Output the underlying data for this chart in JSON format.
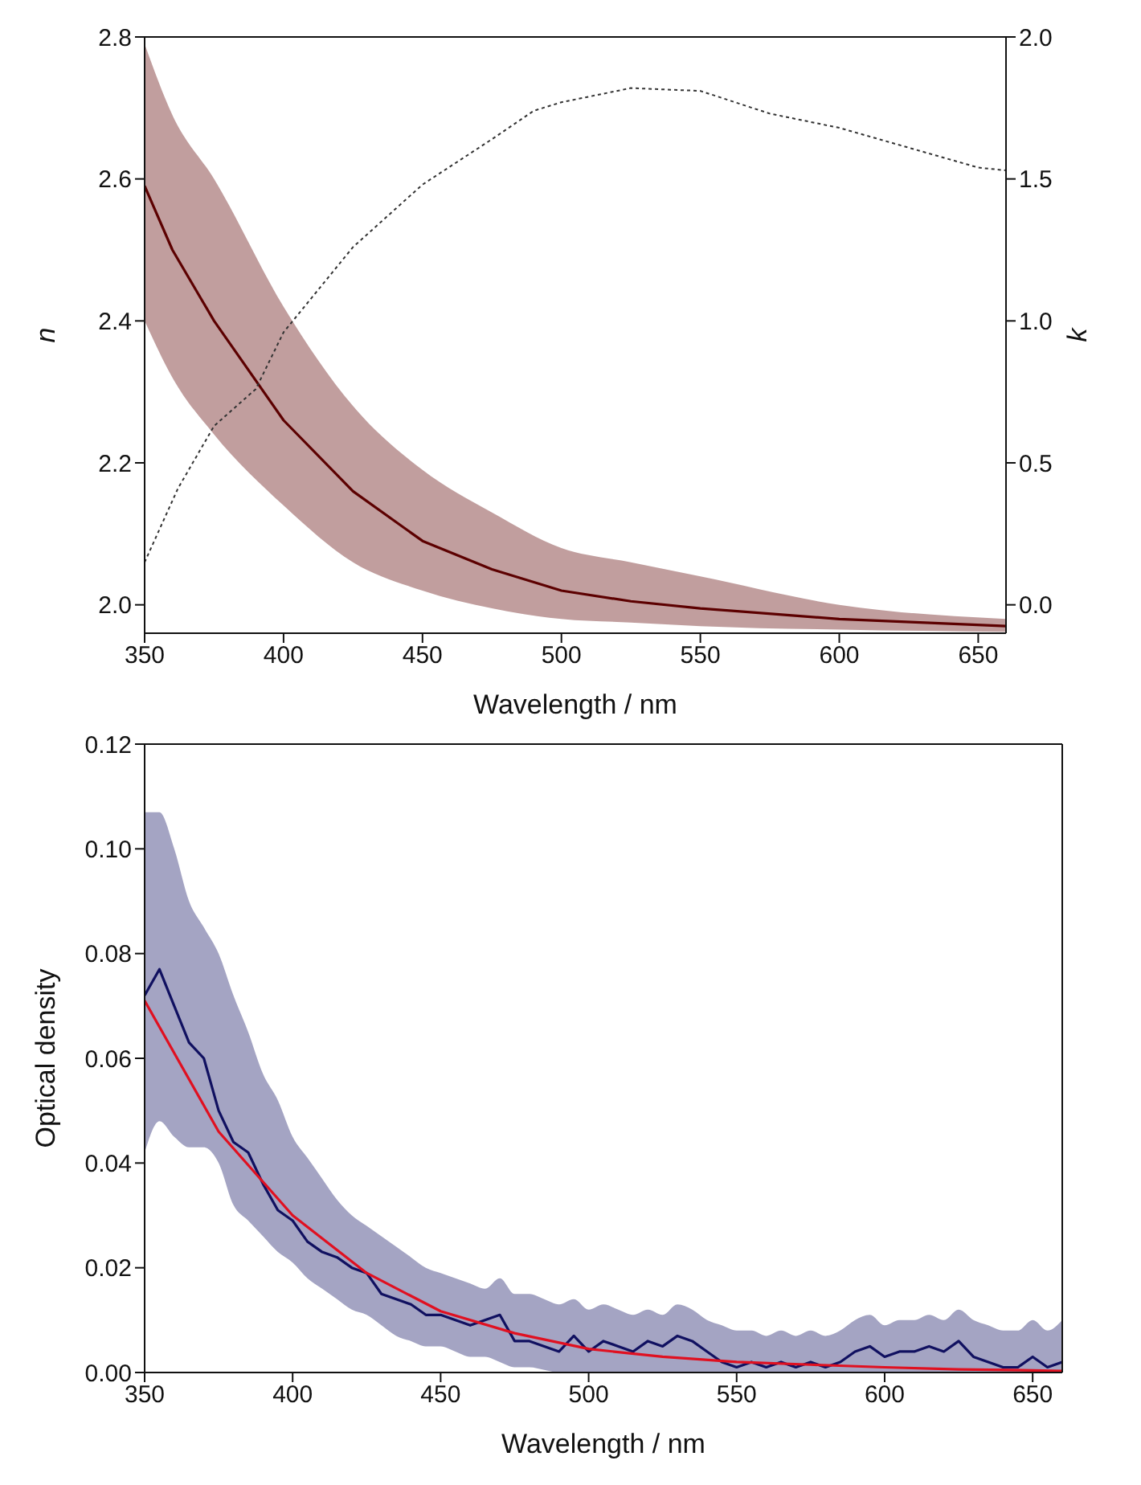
{
  "chart_data": [
    {
      "type": "line",
      "xlabel": "Wavelength / nm",
      "ylabel": "n",
      "y2label": "k",
      "xlim": [
        350,
        660
      ],
      "xticks": [
        350,
        400,
        450,
        500,
        550,
        600,
        650
      ],
      "ylim": [
        1.96,
        2.8
      ],
      "yticks": [
        {
          "value": 2.0,
          "label": "2.0"
        },
        2.2,
        2.4,
        2.6,
        2.8
      ],
      "y2lim": [
        -0.1,
        2.0
      ],
      "y2ticks": [
        {
          "value": 0,
          "label": "0.0"
        },
        0.5,
        {
          "value": 1,
          "label": "1.0"
        },
        1.5,
        {
          "value": 2,
          "label": "2.0"
        }
      ],
      "series": [
        {
          "color": "#5c0000",
          "x": [
            350,
            360,
            375,
            400,
            425,
            450,
            475,
            500,
            525,
            550,
            600,
            660
          ],
          "values": [
            2.59,
            2.5,
            2.4,
            2.26,
            2.16,
            2.09,
            2.05,
            2.02,
            2.005,
            1.995,
            1.98,
            1.97
          ],
          "lower": [
            2.4,
            2.32,
            2.24,
            2.14,
            2.06,
            2.02,
            1.995,
            1.98,
            1.975,
            1.97,
            1.965,
            1.962
          ],
          "upper": [
            2.79,
            2.69,
            2.6,
            2.42,
            2.28,
            2.19,
            2.13,
            2.08,
            2.06,
            2.04,
            2.0,
            1.98
          ]
        },
        {
          "color": "#333333",
          "axis": "y2",
          "line_style": "dotted",
          "x": [
            350,
            362,
            375,
            390,
            400,
            425,
            450,
            475,
            490,
            500,
            525,
            550,
            575,
            600,
            625,
            650,
            660
          ],
          "values": [
            0.15,
            0.41,
            0.63,
            0.76,
            0.96,
            1.26,
            1.48,
            1.64,
            1.74,
            1.77,
            1.82,
            1.81,
            1.73,
            1.68,
            1.61,
            1.54,
            1.53
          ]
        }
      ]
    },
    {
      "type": "line",
      "xlabel": "Wavelength / nm",
      "ylabel": "Optical density",
      "xlim": [
        350,
        660
      ],
      "xticks": [
        350,
        400,
        450,
        500,
        550,
        600,
        650
      ],
      "ylim": [
        0,
        0.12
      ],
      "yticks": [
        {
          "value": 0,
          "label": "0.00"
        },
        {
          "value": 0.02,
          "label": "0.02"
        },
        {
          "value": 0.04,
          "label": "0.04"
        },
        {
          "value": 0.06,
          "label": "0.06"
        },
        {
          "value": 0.08,
          "label": "0.08"
        },
        {
          "value": 0.1,
          "label": "0.10"
        },
        {
          "value": 0.12,
          "label": "0.12"
        }
      ],
      "series": [
        {
          "color": "#101060",
          "x": [
            350,
            355,
            360,
            365,
            370,
            375,
            380,
            385,
            390,
            395,
            400,
            405,
            410,
            415,
            420,
            425,
            430,
            435,
            440,
            445,
            450,
            455,
            460,
            465,
            470,
            475,
            480,
            485,
            490,
            495,
            500,
            505,
            510,
            515,
            520,
            525,
            530,
            535,
            540,
            545,
            550,
            555,
            560,
            565,
            570,
            575,
            580,
            585,
            590,
            595,
            600,
            605,
            610,
            615,
            620,
            625,
            630,
            635,
            640,
            645,
            650,
            655,
            660
          ],
          "values": [
            0.072,
            0.077,
            0.07,
            0.063,
            0.06,
            0.05,
            0.044,
            0.042,
            0.036,
            0.031,
            0.029,
            0.025,
            0.023,
            0.022,
            0.02,
            0.019,
            0.015,
            0.014,
            0.013,
            0.011,
            0.011,
            0.01,
            0.009,
            0.01,
            0.011,
            0.006,
            0.006,
            0.005,
            0.004,
            0.007,
            0.004,
            0.006,
            0.005,
            0.004,
            0.006,
            0.005,
            0.007,
            0.006,
            0.004,
            0.002,
            0.001,
            0.002,
            0.001,
            0.002,
            0.001,
            0.002,
            0.001,
            0.002,
            0.004,
            0.005,
            0.003,
            0.004,
            0.004,
            0.005,
            0.004,
            0.006,
            0.003,
            0.002,
            0.001,
            0.001,
            0.003,
            0.001,
            0.002
          ],
          "lower": [
            0.042,
            0.048,
            0.045,
            0.043,
            0.043,
            0.04,
            0.032,
            0.029,
            0.026,
            0.023,
            0.021,
            0.018,
            0.016,
            0.014,
            0.012,
            0.011,
            0.009,
            0.007,
            0.006,
            0.005,
            0.005,
            0.004,
            0.003,
            0.003,
            0.002,
            0.001,
            0.001,
            0.0005,
            0,
            0,
            0,
            0,
            0,
            0,
            0,
            0,
            0,
            0,
            0,
            0,
            0,
            0,
            0,
            0,
            0,
            0,
            0,
            0,
            0,
            0,
            0,
            0,
            0,
            0,
            0,
            0,
            0,
            0,
            0,
            0,
            0,
            0,
            0
          ],
          "upper": [
            0.107,
            0.107,
            0.1,
            0.09,
            0.085,
            0.08,
            0.072,
            0.065,
            0.057,
            0.052,
            0.045,
            0.041,
            0.037,
            0.033,
            0.03,
            0.028,
            0.026,
            0.024,
            0.022,
            0.02,
            0.019,
            0.018,
            0.017,
            0.016,
            0.018,
            0.015,
            0.015,
            0.014,
            0.013,
            0.014,
            0.012,
            0.013,
            0.012,
            0.011,
            0.012,
            0.011,
            0.013,
            0.012,
            0.01,
            0.009,
            0.008,
            0.008,
            0.007,
            0.008,
            0.007,
            0.008,
            0.007,
            0.008,
            0.01,
            0.011,
            0.009,
            0.01,
            0.01,
            0.011,
            0.01,
            0.012,
            0.01,
            0.009,
            0.008,
            0.008,
            0.01,
            0.008,
            0.01
          ]
        },
        {
          "color": "#e01020",
          "x": [
            350,
            375,
            400,
            425,
            450,
            475,
            500,
            525,
            550,
            575,
            600,
            625,
            650,
            660
          ],
          "values": [
            0.071,
            0.046,
            0.03,
            0.019,
            0.0117,
            0.0075,
            0.0045,
            0.003,
            0.002,
            0.0015,
            0.001,
            0.0006,
            0.0004,
            0.0003
          ]
        }
      ]
    }
  ]
}
